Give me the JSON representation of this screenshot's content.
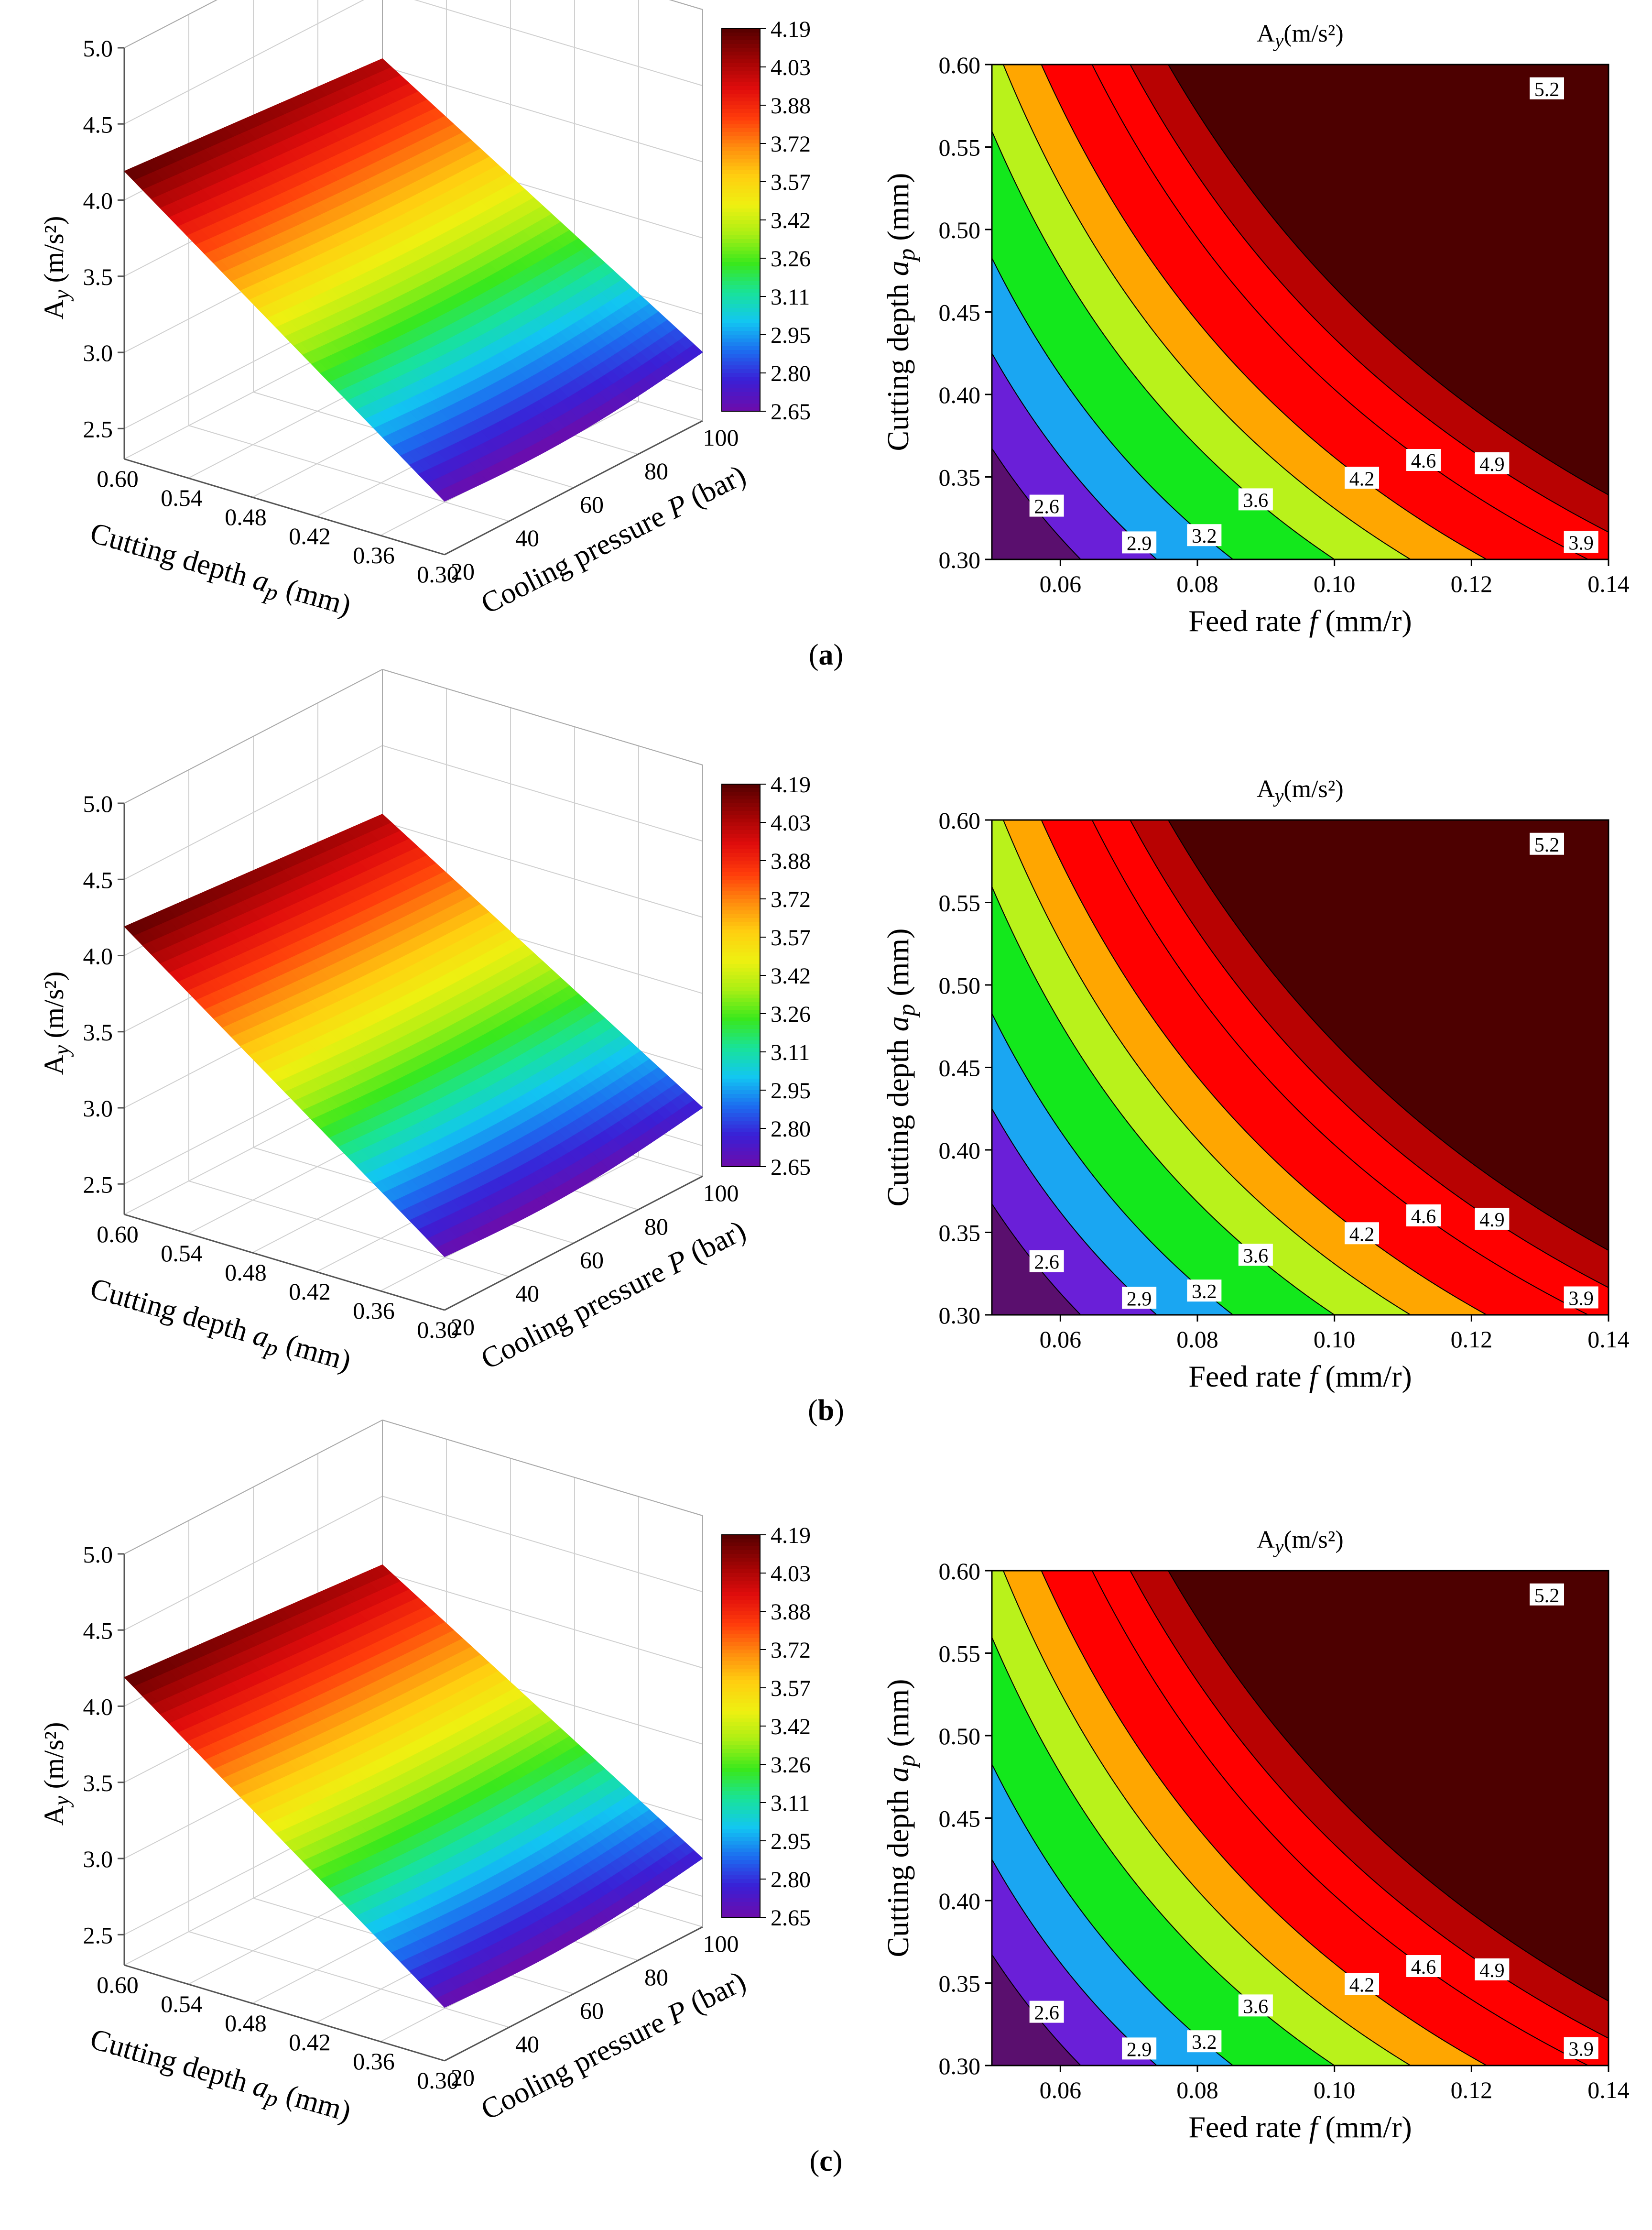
{
  "panels": [
    {
      "label": "(a)"
    },
    {
      "label": "(b)"
    },
    {
      "label": "(c)"
    }
  ],
  "colors": {
    "surface_ramp": [
      "#6a0dad",
      "#3a1fd6",
      "#1c6cf0",
      "#12c6f2",
      "#18e39a",
      "#39e81c",
      "#a9ef14",
      "#eef011",
      "#ffcf10",
      "#ff8c0e",
      "#ff3b0b",
      "#e00c0c",
      "#a00404",
      "#5a0000"
    ],
    "contour_fills": [
      "#5a0f6e",
      "#6a1fd8",
      "#1aa6f2",
      "#13e81c",
      "#b9f21b",
      "#ffa600",
      "#ff0000",
      "#ff0000",
      "#b80202",
      "#4d0000"
    ]
  },
  "chart_data": [
    {
      "type": "surface3d",
      "panel": "(a)",
      "zlabel": "A",
      "zlabel_sub": "y",
      "zlabel_unit": " (m/s²)",
      "xlabel": "Cutting depth",
      "xlabel_sym": "a",
      "xlabel_sub": "p",
      "xlabel_unit": " (mm)",
      "ylabel": "Cooling pressure ",
      "ylabel_sym": "P",
      "ylabel_unit": " (bar)",
      "x_ticks": [
        "0.60",
        "0.54",
        "0.48",
        "0.42",
        "0.36",
        "0.30"
      ],
      "y_ticks": [
        "20",
        "40",
        "60",
        "80",
        "100"
      ],
      "z_ticks": [
        "2.5",
        "3.0",
        "3.5",
        "4.0",
        "4.5",
        "5.0"
      ],
      "zlim": [
        2.3,
        5.0
      ],
      "surface_corners": {
        "ap0.60_P20": 4.19,
        "ap0.60_P100": 4.05,
        "ap0.30_P20": 2.65,
        "ap0.30_P100": 2.75
      },
      "colorbar_ticks": [
        "4.19",
        "4.03",
        "3.88",
        "3.72",
        "3.57",
        "3.42",
        "3.26",
        "3.11",
        "2.95",
        "2.80",
        "2.65"
      ]
    },
    {
      "type": "contour",
      "panel": "(a)",
      "title": "A",
      "title_sub": "y",
      "title_unit": "(m/s²)",
      "xlabel": "Feed rate ",
      "xlabel_sym": "f",
      "xlabel_unit": " (mm/r)",
      "ylabel": "Cutting depth  ",
      "ylabel_sym": "a",
      "ylabel_sub": "p",
      "ylabel_unit": " (mm)",
      "x_ticks": [
        "0.06",
        "0.08",
        "0.10",
        "0.12",
        "0.14"
      ],
      "y_ticks": [
        "0.30",
        "0.35",
        "0.40",
        "0.45",
        "0.50",
        "0.55",
        "0.60"
      ],
      "xlim": [
        0.05,
        0.14
      ],
      "ylim": [
        0.3,
        0.6
      ],
      "levels": [
        2.3,
        2.6,
        2.9,
        3.2,
        3.6,
        3.9,
        4.2,
        4.6,
        4.9,
        5.2
      ],
      "level_labels": [
        "2.6",
        "2.9",
        "3.2",
        "3.6",
        "3.9",
        "4.2",
        "4.6",
        "4.9",
        "5.2"
      ]
    },
    {
      "type": "surface3d",
      "panel": "(b)",
      "zlabel": "A",
      "zlabel_sub": "y",
      "zlabel_unit": " (m/s²)",
      "xlabel": "Cutting depth",
      "xlabel_sym": "a",
      "xlabel_sub": "p",
      "xlabel_unit": " (mm)",
      "ylabel": "Cooling pressure ",
      "ylabel_sym": "P",
      "ylabel_unit": " (bar)",
      "x_ticks": [
        "0.60",
        "0.54",
        "0.48",
        "0.42",
        "0.36",
        "0.30"
      ],
      "y_ticks": [
        "20",
        "40",
        "60",
        "80",
        "100"
      ],
      "z_ticks": [
        "2.5",
        "3.0",
        "3.5",
        "4.0",
        "4.5",
        "5.0"
      ],
      "zlim": [
        2.3,
        5.0
      ],
      "surface_corners": {
        "ap0.60_P20": 4.19,
        "ap0.60_P100": 4.05,
        "ap0.30_P20": 2.65,
        "ap0.30_P100": 2.75
      },
      "colorbar_ticks": [
        "4.19",
        "4.03",
        "3.88",
        "3.72",
        "3.57",
        "3.42",
        "3.26",
        "3.11",
        "2.95",
        "2.80",
        "2.65"
      ]
    },
    {
      "type": "contour",
      "panel": "(b)",
      "title": "A",
      "title_sub": "y",
      "title_unit": "(m/s²)",
      "xlabel": "Feed rate ",
      "xlabel_sym": "f",
      "xlabel_unit": " (mm/r)",
      "ylabel": "Cutting depth  ",
      "ylabel_sym": "a",
      "ylabel_sub": "p",
      "ylabel_unit": " (mm)",
      "x_ticks": [
        "0.06",
        "0.08",
        "0.10",
        "0.12",
        "0.14"
      ],
      "y_ticks": [
        "0.30",
        "0.35",
        "0.40",
        "0.45",
        "0.50",
        "0.55",
        "0.60"
      ],
      "xlim": [
        0.05,
        0.14
      ],
      "ylim": [
        0.3,
        0.6
      ],
      "levels": [
        2.3,
        2.6,
        2.9,
        3.2,
        3.6,
        3.9,
        4.2,
        4.6,
        4.9,
        5.2
      ],
      "level_labels": [
        "2.6",
        "2.9",
        "3.2",
        "3.6",
        "3.9",
        "4.2",
        "4.6",
        "4.9",
        "5.2"
      ]
    },
    {
      "type": "surface3d",
      "panel": "(c)",
      "zlabel": "A",
      "zlabel_sub": "y",
      "zlabel_unit": " (m/s²)",
      "xlabel": "Cutting depth",
      "xlabel_sym": "a",
      "xlabel_sub": "p",
      "xlabel_unit": " (mm)",
      "ylabel": "Cooling pressure ",
      "ylabel_sym": "P",
      "ylabel_unit": " (bar)",
      "x_ticks": [
        "0.60",
        "0.54",
        "0.48",
        "0.42",
        "0.36",
        "0.30"
      ],
      "y_ticks": [
        "20",
        "40",
        "60",
        "80",
        "100"
      ],
      "z_ticks": [
        "2.5",
        "3.0",
        "3.5",
        "4.0",
        "4.5",
        "5.0"
      ],
      "zlim": [
        2.3,
        5.0
      ],
      "surface_corners": {
        "ap0.60_P20": 4.19,
        "ap0.60_P100": 4.05,
        "ap0.30_P20": 2.65,
        "ap0.30_P100": 2.75
      },
      "colorbar_ticks": [
        "4.19",
        "4.03",
        "3.88",
        "3.72",
        "3.57",
        "3.42",
        "3.26",
        "3.11",
        "2.95",
        "2.80",
        "2.65"
      ]
    },
    {
      "type": "contour",
      "panel": "(c)",
      "title": "A",
      "title_sub": "y",
      "title_unit": "(m/s²)",
      "xlabel": "Feed rate ",
      "xlabel_sym": "f",
      "xlabel_unit": " (mm/r)",
      "ylabel": "Cutting depth  ",
      "ylabel_sym": "a",
      "ylabel_sub": "p",
      "ylabel_unit": " (mm)",
      "x_ticks": [
        "0.06",
        "0.08",
        "0.10",
        "0.12",
        "0.14"
      ],
      "y_ticks": [
        "0.30",
        "0.35",
        "0.40",
        "0.45",
        "0.50",
        "0.55",
        "0.60"
      ],
      "xlim": [
        0.05,
        0.14
      ],
      "ylim": [
        0.3,
        0.6
      ],
      "levels": [
        2.3,
        2.6,
        2.9,
        3.2,
        3.6,
        3.9,
        4.2,
        4.6,
        4.9,
        5.2
      ],
      "level_labels": [
        "2.6",
        "2.9",
        "3.2",
        "3.6",
        "3.9",
        "4.2",
        "4.6",
        "4.9",
        "5.2"
      ]
    }
  ]
}
